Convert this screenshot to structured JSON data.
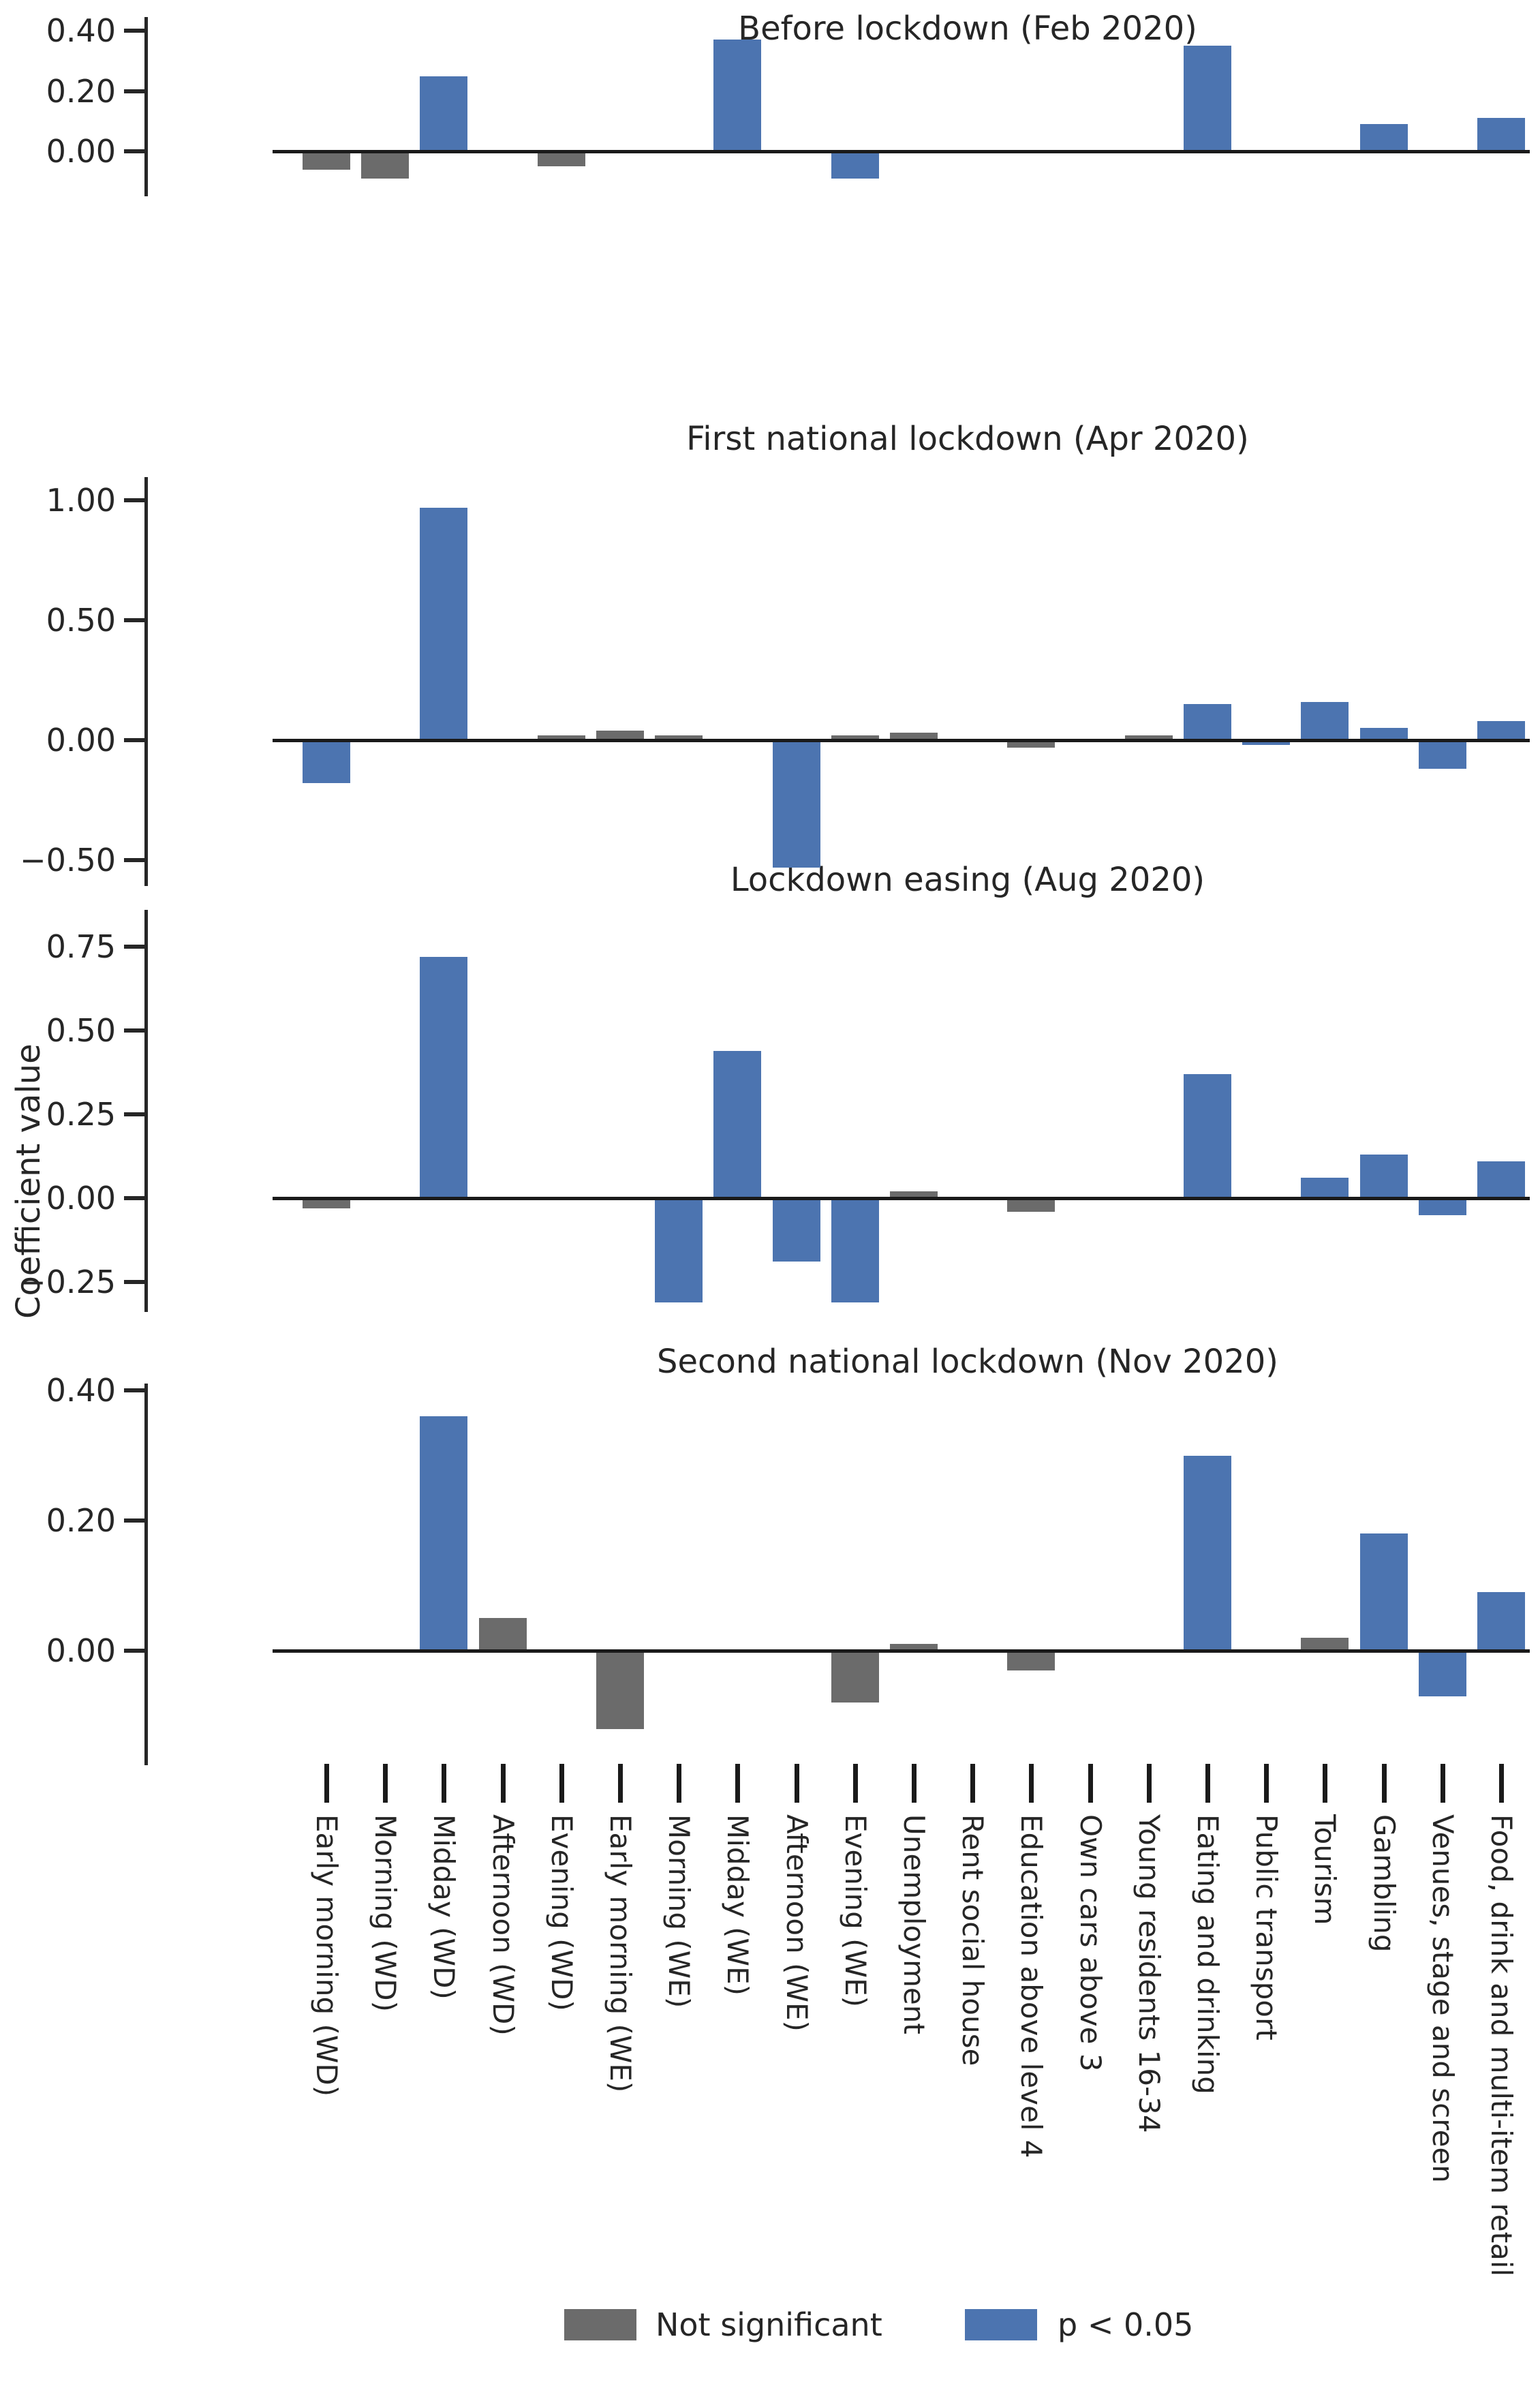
{
  "figure": {
    "ylabel": "Coefficient value"
  },
  "colors": {
    "significant": "#4C74B0",
    "not_significant": "#6B6B6B",
    "axis_line": "#1A1A1A",
    "text": "#262626"
  },
  "legend": {
    "not_significant_label": "Not significant",
    "significant_label": "p < 0.05"
  },
  "chart_data": {
    "type": "bar",
    "grid": false,
    "legend_position": "bottom",
    "xlabel": "",
    "ylabel": "Coefficient value",
    "categories": [
      "Early morning (WD)",
      "Morning (WD)",
      "Midday (WD)",
      "Afternoon (WD)",
      "Evening (WD)",
      "Early morning (WE)",
      "Morning (WE)",
      "Midday (WE)",
      "Afternoon (WE)",
      "Evening (WE)",
      "Unemployment",
      "Rent social house",
      "Education above level 4",
      "Own cars above 3",
      "Young residents 16-34",
      "Eating and drinking",
      "Public transport",
      "Tourism",
      "Gambling",
      "Venues, stage and screen",
      "Food, drink and multi-item retail"
    ],
    "panels": [
      {
        "title": "Before lockdown (Feb 2020)",
        "yticks": [
          {
            "label": "0.40",
            "value": 0.4
          },
          {
            "label": "0.20",
            "value": 0.2
          },
          {
            "label": "0.00",
            "value": 0.0
          }
        ],
        "ylim": [
          -0.15,
          0.44
        ],
        "values": [
          -0.06,
          -0.09,
          0.25,
          0,
          -0.05,
          0,
          0,
          0.37,
          0,
          -0.09,
          0,
          0,
          0,
          0,
          0,
          0.35,
          0,
          0,
          0.09,
          0,
          0.11
        ],
        "significant": [
          false,
          false,
          true,
          null,
          false,
          null,
          null,
          true,
          null,
          true,
          null,
          null,
          null,
          null,
          null,
          true,
          null,
          null,
          true,
          null,
          true
        ]
      },
      {
        "title": "First national lockdown (Apr 2020)",
        "yticks": [
          {
            "label": "1.00",
            "value": 1.0
          },
          {
            "label": "0.50",
            "value": 0.5
          },
          {
            "label": "0.00",
            "value": 0.0
          },
          {
            "label": "−0.50",
            "value": -0.5
          }
        ],
        "ylim": [
          -0.61,
          1.1
        ],
        "values": [
          -0.18,
          0,
          0.97,
          0,
          0.02,
          0.04,
          0.02,
          0,
          -0.53,
          0.02,
          0.03,
          0,
          -0.03,
          0,
          0.02,
          0.15,
          -0.02,
          0.16,
          0.05,
          -0.12,
          0.08
        ],
        "significant": [
          true,
          null,
          true,
          null,
          false,
          false,
          false,
          null,
          true,
          false,
          false,
          null,
          false,
          null,
          false,
          true,
          true,
          true,
          true,
          true,
          true
        ]
      },
      {
        "title": "Lockdown easing (Aug 2020)",
        "yticks": [
          {
            "label": "0.75",
            "value": 0.75
          },
          {
            "label": "0.50",
            "value": 0.5
          },
          {
            "label": "0.25",
            "value": 0.25
          },
          {
            "label": "0.00",
            "value": 0.0
          },
          {
            "label": "−0.25",
            "value": -0.25
          }
        ],
        "ylim": [
          -0.34,
          0.86
        ],
        "values": [
          -0.03,
          0,
          0.72,
          0,
          0,
          0,
          -0.31,
          0.44,
          -0.19,
          -0.31,
          0.02,
          0,
          -0.04,
          0,
          0,
          0.37,
          0,
          0.06,
          0.13,
          -0.05,
          0.11
        ],
        "significant": [
          false,
          null,
          true,
          null,
          null,
          null,
          true,
          true,
          true,
          true,
          false,
          null,
          false,
          null,
          null,
          true,
          null,
          true,
          true,
          true,
          true
        ]
      },
      {
        "title": "Second national lockdown (Nov 2020)",
        "yticks": [
          {
            "label": "0.40",
            "value": 0.4
          },
          {
            "label": "0.20",
            "value": 0.2
          },
          {
            "label": "0.00",
            "value": 0.0
          }
        ],
        "ylim": [
          -0.17,
          0.41
        ],
        "values": [
          0,
          0,
          0.36,
          0.05,
          0,
          -0.12,
          0,
          0,
          0,
          -0.08,
          0.01,
          0,
          -0.03,
          0,
          0,
          0.3,
          0,
          0.02,
          0.18,
          -0.07,
          0.09
        ],
        "significant": [
          null,
          null,
          true,
          false,
          null,
          false,
          null,
          null,
          null,
          false,
          false,
          null,
          false,
          null,
          null,
          true,
          null,
          false,
          true,
          true,
          true
        ]
      }
    ]
  }
}
